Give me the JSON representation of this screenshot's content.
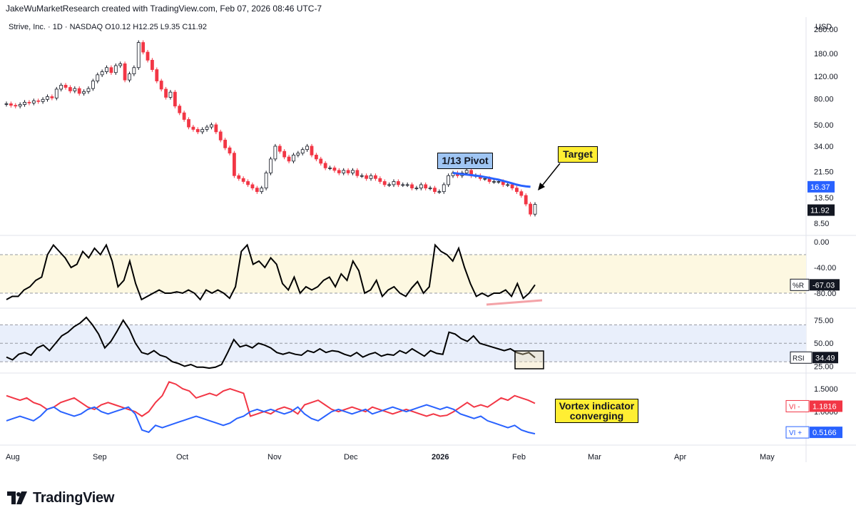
{
  "header": {
    "attribution": "JakeWuMarketResearch created with TradingView.com, Feb 07, 2026 08:46 UTC-7"
  },
  "symbol": {
    "name": "Strive, Inc.",
    "interval": "1D",
    "exchange": "NASDAQ",
    "line": "Strive, Inc. · 1D · NASDAQ",
    "ohlc": "O10.12  H12.25  L9.35  C11.92"
  },
  "currency": "USD",
  "annotations": {
    "pivot": "1/13 Pivot",
    "target": "Target",
    "vortex_line1": "Vortex indicator",
    "vortex_line2": "converging"
  },
  "footer": {
    "brand": "TradingView"
  },
  "colors": {
    "up": "#ffffff",
    "down": "#f23645",
    "ma": "#2962ff",
    "vi_plus": "#2962ff",
    "vi_minus": "#f23645",
    "wr_band": "#fdf8e1",
    "rsi_band": "#e9effb"
  },
  "chart_data": [
    {
      "type": "candlestick",
      "title": "Strive, Inc. · 1D · NASDAQ",
      "y_scale": "log",
      "ylim": [
        7,
        330
      ],
      "y_ticks": [
        "280.00",
        "180.00",
        "120.00",
        "80.00",
        "50.00",
        "34.00",
        "21.50",
        "13.50",
        "8.50"
      ],
      "x_ticks": [
        "Aug",
        "Sep",
        "Oct",
        "Nov",
        "Dec",
        "2026",
        "Feb",
        "Mar",
        "Apr",
        "May"
      ],
      "x_range": [
        "2025-08-01",
        "2026-05-20"
      ],
      "last_close": "11.92",
      "moving_average_value": "16.37",
      "candles_close": [
        73,
        71,
        70,
        72,
        75,
        74,
        77,
        76,
        79,
        83,
        81,
        95,
        102,
        98,
        92,
        96,
        88,
        91,
        96,
        110,
        123,
        130,
        140,
        128,
        145,
        150,
        112,
        125,
        140,
        220,
        185,
        160,
        135,
        110,
        95,
        82,
        90,
        70,
        62,
        55,
        48,
        46,
        44,
        46,
        48,
        50,
        44,
        38,
        33,
        30,
        20,
        19,
        18,
        17,
        16,
        15,
        16,
        21,
        27,
        34,
        31,
        28,
        26,
        29,
        30,
        32,
        34,
        29,
        27,
        25,
        23,
        23,
        22,
        21,
        22,
        21,
        22,
        20,
        20,
        19,
        20,
        19,
        18,
        17,
        17,
        18,
        17,
        17,
        17,
        16,
        16,
        17,
        16,
        16,
        15,
        15,
        17,
        20,
        21,
        20,
        21,
        22,
        20,
        20,
        19,
        19,
        18,
        18,
        18,
        17,
        17,
        16,
        15,
        14,
        12,
        10,
        11.92
      ]
    },
    {
      "type": "line",
      "name": "%R",
      "ylim": [
        -100,
        0
      ],
      "y_ticks": [
        "0.00",
        "-40.00",
        "-80.00"
      ],
      "last_value": "-67.03",
      "values": [
        -90,
        -85,
        -85,
        -75,
        -70,
        -60,
        -55,
        -20,
        -5,
        -15,
        -25,
        -40,
        -35,
        -15,
        -25,
        -10,
        -20,
        -5,
        -30,
        -70,
        -60,
        -30,
        -65,
        -90,
        -85,
        -80,
        -75,
        -80,
        -80,
        -78,
        -80,
        -75,
        -80,
        -90,
        -75,
        -80,
        -75,
        -80,
        -88,
        -70,
        -15,
        -5,
        -35,
        -30,
        -40,
        -25,
        -35,
        -65,
        -75,
        -55,
        -80,
        -70,
        -75,
        -70,
        -60,
        -55,
        -70,
        -50,
        -60,
        -30,
        -45,
        -80,
        -75,
        -60,
        -85,
        -75,
        -70,
        -80,
        -85,
        -72,
        -62,
        -80,
        -70,
        -5,
        -15,
        -20,
        -30,
        -10,
        -40,
        -65,
        -85,
        -80,
        -85,
        -80,
        -80,
        -75,
        -85,
        -65,
        -88,
        -80,
        -67.03
      ]
    },
    {
      "type": "line",
      "name": "RSI",
      "ylim": [
        20,
        85
      ],
      "y_ticks": [
        "75.00",
        "50.00",
        "25.00"
      ],
      "last_value": "34.49",
      "values": [
        35,
        32,
        38,
        40,
        37,
        45,
        48,
        42,
        50,
        58,
        62,
        68,
        72,
        78,
        70,
        60,
        45,
        52,
        63,
        75,
        65,
        50,
        40,
        38,
        42,
        37,
        35,
        30,
        28,
        25,
        27,
        24,
        24,
        23,
        24,
        27,
        40,
        54,
        46,
        48,
        45,
        50,
        48,
        45,
        40,
        38,
        40,
        38,
        37,
        42,
        40,
        44,
        40,
        42,
        41,
        38,
        36,
        40,
        35,
        38,
        40,
        36,
        38,
        37,
        42,
        39,
        44,
        40,
        36,
        42,
        39,
        38,
        62,
        60,
        55,
        52,
        58,
        50,
        48,
        46,
        44,
        42,
        44,
        40,
        38,
        40,
        34.49
      ]
    },
    {
      "type": "line",
      "name": "Vortex",
      "ylim": [
        0.3,
        1.75
      ],
      "y_ticks": [
        "1.5000",
        "1.0000"
      ],
      "series": [
        {
          "name": "VI -",
          "last_value": "1.1816",
          "values": [
            1.35,
            1.3,
            1.25,
            1.3,
            1.2,
            1.15,
            1.05,
            1.1,
            1.2,
            1.25,
            1.3,
            1.2,
            1.1,
            1.05,
            1.15,
            1.2,
            1.15,
            1.1,
            1.05,
            1.0,
            0.9,
            1.0,
            1.2,
            1.35,
            1.65,
            1.6,
            1.5,
            1.45,
            1.3,
            1.35,
            1.4,
            1.35,
            1.45,
            1.5,
            1.45,
            1.4,
            0.9,
            0.95,
            1.0,
            0.95,
            1.05,
            1.1,
            1.05,
            0.95,
            1.15,
            1.2,
            1.25,
            1.15,
            1.05,
            1.0,
            1.05,
            1.1,
            1.05,
            1.0,
            1.1,
            1.05,
            1.0,
            0.95,
            1.0,
            1.05,
            1.0,
            0.95,
            0.9,
            0.95,
            0.9,
            0.92,
            1.0,
            1.1,
            1.2,
            1.1,
            1.15,
            1.1,
            1.2,
            1.3,
            1.25,
            1.35,
            1.3,
            1.25,
            1.1816
          ]
        },
        {
          "name": "VI +",
          "last_value": "0.5166",
          "values": [
            0.8,
            0.85,
            0.9,
            0.85,
            0.8,
            0.9,
            1.05,
            1.1,
            1.0,
            0.95,
            0.9,
            0.95,
            1.05,
            1.1,
            1.0,
            0.95,
            1.0,
            1.05,
            1.1,
            0.95,
            0.6,
            0.55,
            0.7,
            0.65,
            0.7,
            0.75,
            0.8,
            0.85,
            0.9,
            0.85,
            0.8,
            0.75,
            0.7,
            0.75,
            0.85,
            0.9,
            1.0,
            1.05,
            1.0,
            1.05,
            1.0,
            0.95,
            1.0,
            1.1,
            0.95,
            0.85,
            0.8,
            0.9,
            1.0,
            1.05,
            1.0,
            0.95,
            1.0,
            1.05,
            0.95,
            1.0,
            1.05,
            1.1,
            1.05,
            1.0,
            1.05,
            1.1,
            1.15,
            1.1,
            1.05,
            1.1,
            1.05,
            0.95,
            0.9,
            0.85,
            0.9,
            0.8,
            0.75,
            0.7,
            0.65,
            0.7,
            0.6,
            0.55,
            0.5166
          ]
        }
      ]
    }
  ]
}
